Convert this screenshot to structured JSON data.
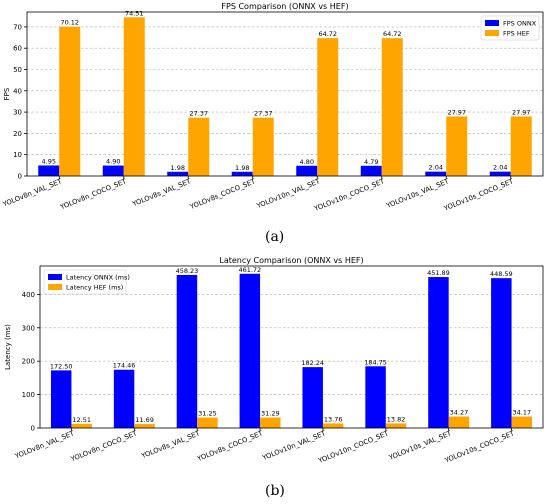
{
  "chart_data": [
    {
      "type": "bar",
      "title": "FPS Comparison (ONNX vs HEF)",
      "xlabel": "",
      "ylabel": "FPS",
      "ylim": [
        0,
        77
      ],
      "yticks": [
        0,
        10,
        20,
        30,
        40,
        50,
        60,
        70
      ],
      "grid": true,
      "legend_position": "top-right",
      "categories": [
        "YOLOv8n_VAL_SET",
        "YOLOv8n_COCO_SET",
        "YOLOv8s_VAL_SET",
        "YOLOv8s_COCO_SET",
        "YOLOv10n_VAL_SET",
        "YOLOv10n_COCO_SET",
        "YOLOv10s_VAL_SET",
        "YOLOv10s_COCO_SET"
      ],
      "series": [
        {
          "name": "FPS ONNX",
          "color": "#0000ff",
          "values": [
            4.95,
            4.9,
            1.98,
            1.98,
            4.8,
            4.79,
            2.04,
            2.04
          ],
          "labels": [
            "4.95",
            "4.90",
            "1.98",
            "1.98",
            "4.80",
            "4.79",
            "2.04",
            "2.04"
          ]
        },
        {
          "name": "FPS HEF",
          "color": "#ffa500",
          "values": [
            70.12,
            74.51,
            27.37,
            27.37,
            64.72,
            64.72,
            27.97,
            27.97
          ],
          "labels": [
            "70.12",
            "74.51",
            "27.37",
            "27.37",
            "64.72",
            "64.72",
            "27.97",
            "27.97"
          ]
        }
      ]
    },
    {
      "type": "bar",
      "title": "Latency Comparison (ONNX vs HEF)",
      "xlabel": "",
      "ylabel": "Latency (ms)",
      "ylim": [
        0,
        485
      ],
      "yticks": [
        0,
        100,
        200,
        300,
        400
      ],
      "grid": true,
      "legend_position": "top-left",
      "categories": [
        "YOLOv8n_VAL_SET",
        "YOLOv8n_COCO_SET",
        "YOLOv8s_VAL_SET",
        "YOLOv8s_COCO_SET",
        "YOLOv10n_VAL_SET",
        "YOLOv10n_COCO_SET",
        "YOLOv10s_VAL_SET",
        "YOLOv10s_COCO_SET"
      ],
      "series": [
        {
          "name": "Latency ONNX (ms)",
          "color": "#0000ff",
          "values": [
            172.5,
            174.46,
            458.23,
            461.72,
            182.24,
            184.75,
            451.89,
            448.59
          ],
          "labels": [
            "172.50",
            "174.46",
            "458.23",
            "461.72",
            "182.24",
            "184.75",
            "451.89",
            "448.59"
          ]
        },
        {
          "name": "Latency HEF (ms)",
          "color": "#ffa500",
          "values": [
            12.51,
            11.69,
            31.25,
            31.29,
            13.76,
            13.82,
            34.27,
            34.17
          ],
          "labels": [
            "12.51",
            "11.69",
            "31.25",
            "31.29",
            "13.76",
            "13.82",
            "34.27",
            "34.17"
          ]
        }
      ]
    }
  ],
  "captions": [
    "(a)",
    "(b)"
  ]
}
